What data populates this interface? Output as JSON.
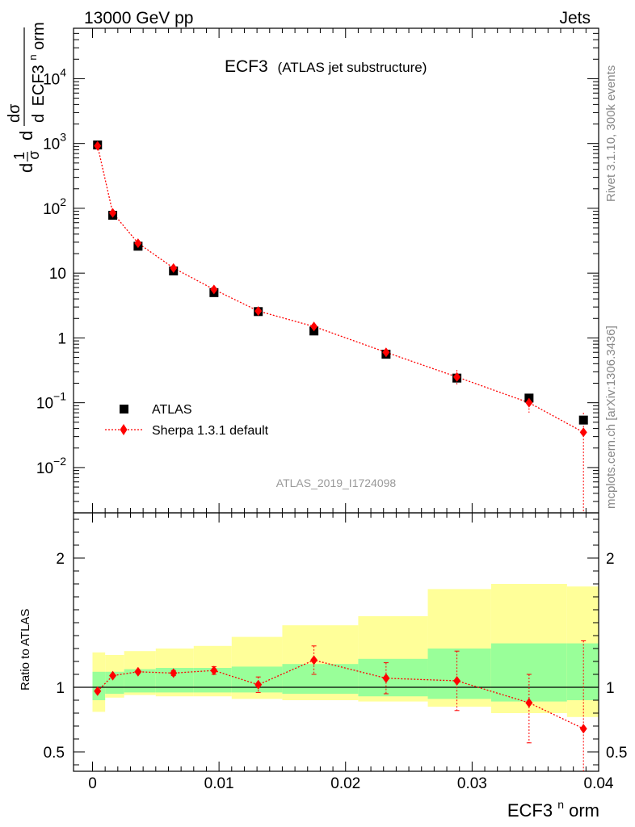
{
  "header": {
    "left": "13000 GeV pp",
    "right": "Jets"
  },
  "title": {
    "main": "ECF3",
    "sub": "(ATLAS jet substructure)"
  },
  "side_labels": {
    "rivet": "Rivet 3.1.10,  300k events",
    "mcplots": "mcplots.cern.ch [arXiv:1306.3436]"
  },
  "analysis_id": "ATLAS_2019_I1724098",
  "legend": {
    "data_label": "ATLAS",
    "mc_label": "Sherpa 1.3.1 default"
  },
  "ylabel_ratio": "Ratio to ATLAS",
  "xlabel": {
    "base": "ECF3",
    "sup": "n",
    "rest": "orm"
  },
  "ylabel_main": {
    "line1": "d",
    "d_over": "d",
    "ecf": "ECF3",
    "sup": "n",
    "rest": "orm",
    "pre1": "1",
    "pre_sigma": "σ",
    "pre_d": "d",
    "num": "dσ"
  },
  "colors": {
    "data": "#000000",
    "mc": "#ff0000",
    "band_outer": "#ffff99",
    "band_inner": "#99ff99",
    "side_text": "#888888"
  },
  "chart_data": [
    {
      "type": "scatter",
      "panel": "main",
      "yscale": "log",
      "xlim": [
        -0.0015,
        0.04
      ],
      "ylim": [
        0.002,
        60000
      ],
      "yticks": [
        {
          "v": 0.01,
          "mant": "10",
          "exp": "−2"
        },
        {
          "v": 0.1,
          "mant": "10",
          "exp": "−1"
        },
        {
          "v": 1,
          "mant": "1",
          "exp": ""
        },
        {
          "v": 10,
          "mant": "10",
          "exp": ""
        },
        {
          "v": 100,
          "mant": "10",
          "exp": "2"
        },
        {
          "v": 1000,
          "mant": "10",
          "exp": "3"
        },
        {
          "v": 10000,
          "mant": "10",
          "exp": "4"
        }
      ],
      "series": [
        {
          "name": "ATLAS",
          "x": [
            0.0004,
            0.0016,
            0.0036,
            0.0064,
            0.0096,
            0.0131,
            0.0175,
            0.0232,
            0.0288,
            0.0345,
            0.0388
          ],
          "y": [
            950,
            78,
            26,
            10.8,
            5.0,
            2.55,
            1.28,
            0.56,
            0.24,
            0.118,
            0.054
          ]
        },
        {
          "name": "Sherpa 1.3.1 default",
          "x": [
            0.0004,
            0.0016,
            0.0036,
            0.0064,
            0.0096,
            0.0131,
            0.0175,
            0.0232,
            0.0288,
            0.0345,
            0.0388
          ],
          "y": [
            920,
            85,
            29,
            12.0,
            5.6,
            2.6,
            1.5,
            0.6,
            0.25,
            0.1,
            0.035
          ],
          "err_up": [
            80,
            5,
            1.6,
            0.8,
            0.4,
            0.25,
            0.15,
            0.07,
            0.07,
            0.03,
            0.035
          ],
          "err_down": [
            80,
            5,
            1.6,
            0.8,
            0.4,
            0.25,
            0.15,
            0.07,
            0.07,
            0.03,
            0.034
          ]
        }
      ]
    },
    {
      "type": "scatter",
      "panel": "ratio",
      "xlim": [
        -0.0015,
        0.04
      ],
      "ylim": [
        0.35,
        2.35
      ],
      "yticks": [
        0.5,
        1,
        2
      ],
      "xticks": [
        0,
        0.01,
        0.02,
        0.03,
        0.04
      ],
      "bins": [
        0.0,
        0.001,
        0.0025,
        0.005,
        0.008,
        0.011,
        0.015,
        0.021,
        0.0265,
        0.0315,
        0.0375,
        0.04
      ],
      "band_inner": {
        "low": [
          0.9,
          0.95,
          0.96,
          0.96,
          0.96,
          0.96,
          0.95,
          0.93,
          0.91,
          0.89,
          0.9
        ],
        "high": [
          1.12,
          1.12,
          1.14,
          1.15,
          1.15,
          1.16,
          1.18,
          1.22,
          1.3,
          1.34,
          1.34
        ]
      },
      "band_outer": {
        "low": [
          0.81,
          0.92,
          0.94,
          0.93,
          0.93,
          0.91,
          0.9,
          0.89,
          0.85,
          0.8,
          0.77
        ],
        "high": [
          1.27,
          1.25,
          1.28,
          1.3,
          1.32,
          1.39,
          1.48,
          1.55,
          1.76,
          1.8,
          1.78
        ]
      },
      "series": [
        {
          "name": "Sherpa 1.3.1 default",
          "x": [
            0.0004,
            0.0016,
            0.0036,
            0.0064,
            0.0096,
            0.0131,
            0.0175,
            0.0232,
            0.0288,
            0.0345,
            0.0388
          ],
          "y": [
            0.97,
            1.09,
            1.12,
            1.11,
            1.13,
            1.02,
            1.21,
            1.07,
            1.05,
            0.88,
            0.68
          ],
          "err_up": [
            0.0,
            0.0,
            0.0,
            0.02,
            0.03,
            0.06,
            0.11,
            0.12,
            0.23,
            0.22,
            0.68
          ],
          "err_down": [
            0.0,
            0.0,
            0.0,
            0.02,
            0.03,
            0.06,
            0.11,
            0.12,
            0.23,
            0.31,
            0.35
          ]
        }
      ]
    }
  ]
}
